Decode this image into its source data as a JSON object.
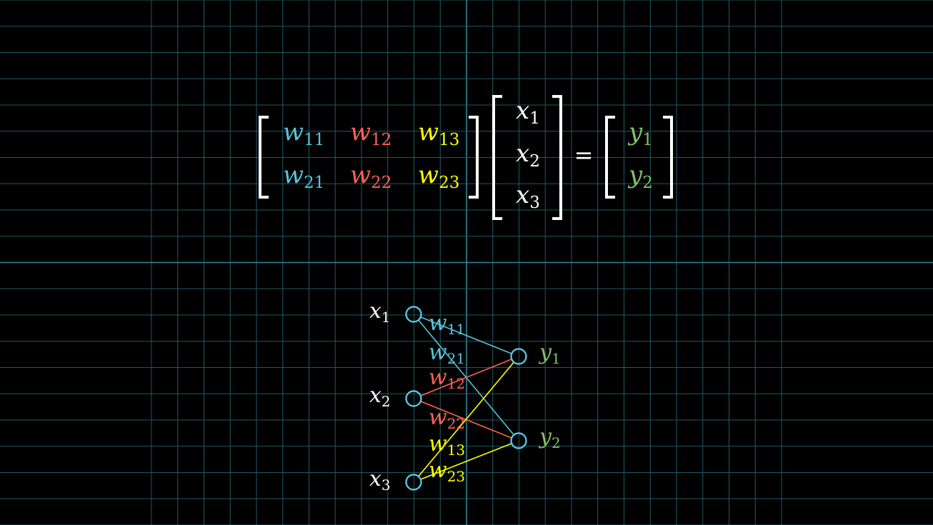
{
  "colors": {
    "background": "#000000",
    "grid": "#1f5a66",
    "grid_axis": "#2e8899",
    "col1": "#58c4dd",
    "col2": "#fc6255",
    "col3": "#ffff00",
    "output": "#83c167",
    "text": "#ffffff",
    "node": "#58c4dd"
  },
  "equation": {
    "weights": [
      [
        {
          "var": "w",
          "sub": "11"
        },
        {
          "var": "w",
          "sub": "12"
        },
        {
          "var": "w",
          "sub": "13"
        }
      ],
      [
        {
          "var": "w",
          "sub": "21"
        },
        {
          "var": "w",
          "sub": "22"
        },
        {
          "var": "w",
          "sub": "23"
        }
      ]
    ],
    "inputs": [
      {
        "var": "x",
        "sub": "1"
      },
      {
        "var": "x",
        "sub": "2"
      },
      {
        "var": "x",
        "sub": "3"
      }
    ],
    "equals": "=",
    "outputs": [
      {
        "var": "y",
        "sub": "1"
      },
      {
        "var": "y",
        "sub": "2"
      }
    ]
  },
  "network": {
    "inputs": [
      {
        "var": "x",
        "sub": "1"
      },
      {
        "var": "x",
        "sub": "2"
      },
      {
        "var": "x",
        "sub": "3"
      }
    ],
    "outputs": [
      {
        "var": "y",
        "sub": "1"
      },
      {
        "var": "y",
        "sub": "2"
      }
    ],
    "edges": [
      {
        "from": 0,
        "to": 0,
        "var": "w",
        "sub": "11",
        "color": "col1"
      },
      {
        "from": 0,
        "to": 1,
        "var": "w",
        "sub": "21",
        "color": "col1"
      },
      {
        "from": 1,
        "to": 0,
        "var": "w",
        "sub": "12",
        "color": "col2"
      },
      {
        "from": 1,
        "to": 1,
        "var": "w",
        "sub": "22",
        "color": "col2"
      },
      {
        "from": 2,
        "to": 0,
        "var": "w",
        "sub": "13",
        "color": "col3"
      },
      {
        "from": 2,
        "to": 1,
        "var": "w",
        "sub": "23",
        "color": "col3"
      }
    ]
  }
}
